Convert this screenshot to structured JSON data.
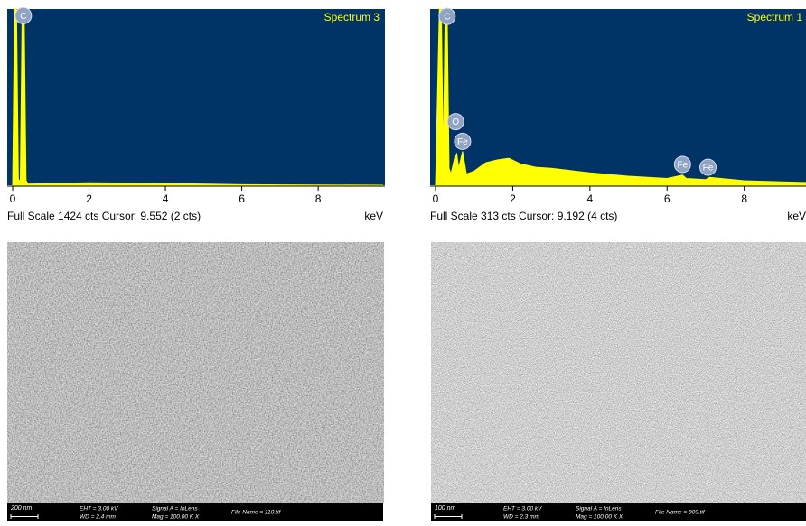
{
  "chart_data": [
    {
      "type": "area",
      "title": "Spectrum 3",
      "status": "Full Scale 1424 cts Cursor: 9.552  (2 cts)",
      "x_label": "keV",
      "x": [
        0,
        0.05,
        0.1,
        0.15,
        0.2,
        0.25,
        0.3,
        0.35,
        0.4,
        0.5,
        1,
        2,
        4,
        6,
        9.7
      ],
      "series": [
        {
          "color": "#ffff00",
          "values": [
            0,
            1424,
            1424,
            50,
            30,
            1424,
            1424,
            40,
            10,
            10,
            15,
            20,
            15,
            5,
            0
          ]
        }
      ],
      "xlim": [
        0,
        9.7
      ],
      "ylim": [
        0,
        1424
      ],
      "xticks": [
        0,
        2,
        4,
        6,
        8
      ],
      "peak_labels": [
        {
          "label": "C",
          "x": 0.28,
          "y": 1370
        }
      ]
    },
    {
      "type": "area",
      "title": "Spectrum 1",
      "status": "Full Scale 313 cts Cursor: 9.192  (4 cts)",
      "x_label": "keV",
      "x": [
        0,
        0.1,
        0.15,
        0.2,
        0.25,
        0.3,
        0.35,
        0.4,
        0.5,
        0.55,
        0.6,
        0.7,
        0.8,
        1.0,
        1.3,
        1.6,
        1.9,
        2.2,
        2.6,
        3,
        3.5,
        4,
        5,
        6,
        6.4,
        6.5,
        7,
        7.1,
        8,
        9,
        9.6
      ],
      "series": [
        {
          "color": "#ffff00",
          "values": [
            0,
            313,
            313,
            40,
            313,
            313,
            30,
            20,
            50,
            56,
            30,
            60,
            20,
            25,
            40,
            45,
            48,
            38,
            32,
            30,
            26,
            22,
            16,
            12,
            18,
            12,
            10,
            14,
            8,
            6,
            5
          ]
        }
      ],
      "xlim": [
        0,
        9.6
      ],
      "ylim": [
        0,
        313
      ],
      "xticks": [
        0,
        2,
        4,
        6,
        8
      ],
      "peak_labels": [
        {
          "label": "C",
          "x": 0.3,
          "y": 300
        },
        {
          "label": "O",
          "x": 0.52,
          "y": 113
        },
        {
          "label": "Fe",
          "x": 0.7,
          "y": 78
        },
        {
          "label": "Fe",
          "x": 6.4,
          "y": 37
        },
        {
          "label": "Fe",
          "x": 7.06,
          "y": 32
        }
      ]
    }
  ],
  "sem_images": [
    {
      "scale_bar": "200 nm",
      "info": [
        "EHT =  3.00 kV",
        "WD =  2.4 mm",
        "Signal A = InLens",
        "Mag =  100.00 K X",
        "File Name = 110.tif"
      ]
    },
    {
      "scale_bar": "100 nm",
      "info": [
        "EHT =  3.00 kV",
        "WD =  2.3 mm",
        "Signal A = InLens",
        "Mag =  100.00 K X",
        "File Name = 809.tif"
      ]
    }
  ]
}
